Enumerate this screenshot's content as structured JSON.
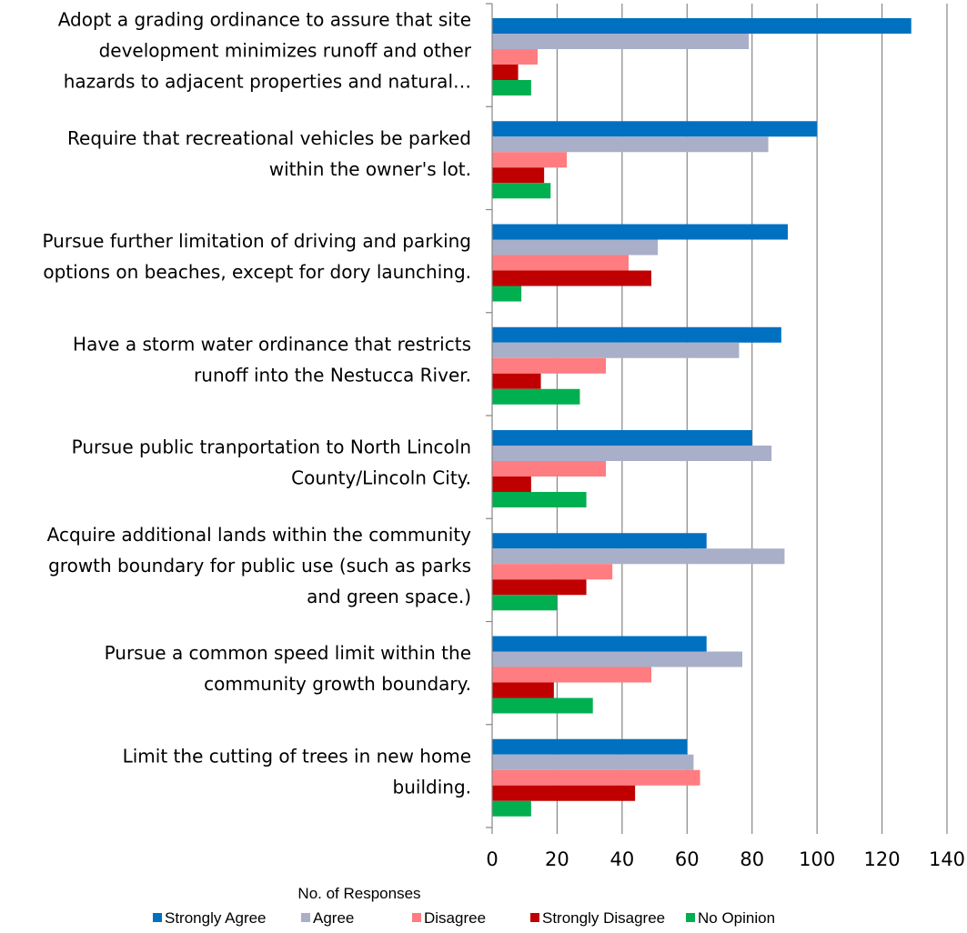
{
  "chart_data": {
    "type": "bar",
    "orientation": "horizontal",
    "categories": [
      "Adopt a grading ordinance to assure that site development minimizes runoff and other hazards to adjacent properties and natural…",
      "Require that recreational vehicles be parked within the owner's lot.",
      "Pursue further limitation of driving and parking options on beaches, except for dory launching.",
      "Have a storm water ordinance that restricts runoff into the Nestucca River.",
      "Pursue public tranportation to North Lincoln County/Lincoln City.",
      "Acquire additional lands within the community growth boundary for public use (such as parks and green space.)",
      "Pursue a common speed limit within the community growth boundary.",
      "Limit the cutting of trees in new home building."
    ],
    "category_lines": [
      [
        "Adopt a grading ordinance to assure that site",
        "development minimizes runoff and other",
        "hazards to adjacent properties and natural…"
      ],
      [
        "Require that recreational vehicles be parked",
        "within the owner's lot."
      ],
      [
        "Pursue further limitation of driving and parking",
        "options on beaches, except for dory launching."
      ],
      [
        "Have a storm water ordinance that restricts",
        "runoff into the Nestucca River."
      ],
      [
        "Pursue public tranportation to North Lincoln",
        "County/Lincoln City."
      ],
      [
        "Acquire additional lands within the community",
        "growth boundary for public use (such as parks",
        "and green space.)"
      ],
      [
        "Pursue a common speed limit within the",
        "community growth boundary."
      ],
      [
        "Limit the cutting of trees in new home",
        "building."
      ]
    ],
    "series": [
      {
        "name": "Strongly Agree",
        "color": "#0070C0",
        "values": [
          129,
          100,
          91,
          89,
          80,
          66,
          66,
          60
        ]
      },
      {
        "name": "Agree",
        "color": "#A9AFC8",
        "values": [
          79,
          85,
          51,
          76,
          86,
          90,
          77,
          62
        ]
      },
      {
        "name": "Disagree",
        "color": "#FF7C80",
        "values": [
          14,
          23,
          42,
          35,
          35,
          37,
          49,
          64
        ]
      },
      {
        "name": "Strongly Disagree",
        "color": "#C00000",
        "values": [
          8,
          16,
          49,
          15,
          12,
          29,
          19,
          44
        ]
      },
      {
        "name": "No Opinion",
        "color": "#00B050",
        "values": [
          12,
          18,
          9,
          27,
          29,
          20,
          31,
          12
        ]
      }
    ],
    "xlabel": "No. of  Responses",
    "xlim": [
      0,
      140
    ],
    "xticks": [
      0,
      20,
      40,
      60,
      80,
      100,
      120,
      140
    ],
    "grid": "vertical",
    "gridline_color": "#868686",
    "legend_position": "bottom"
  }
}
